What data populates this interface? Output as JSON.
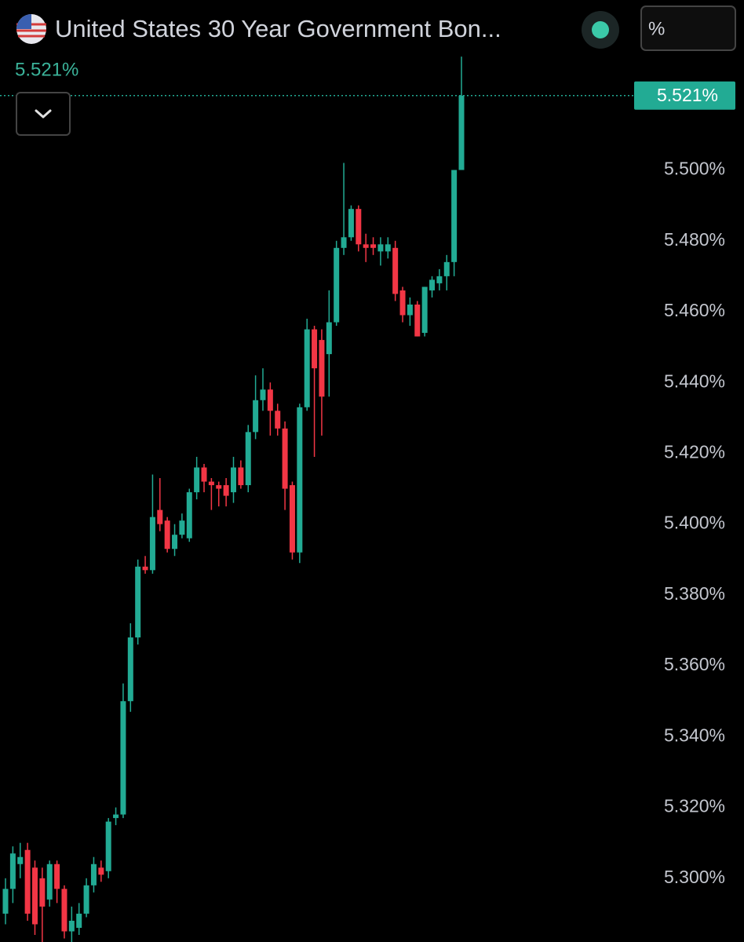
{
  "header": {
    "title": "United States 30 Year Government Bon...",
    "unit_button": "%"
  },
  "chart_data": {
    "type": "candlestick",
    "last_price": {
      "value": 5.521,
      "label": "5.521%"
    },
    "up_color": "#22ab94",
    "down_color": "#f23645",
    "ylim": [
      5.282,
      5.548
    ],
    "yticks": [
      {
        "value": 5.3,
        "label": "5.300%"
      },
      {
        "value": 5.32,
        "label": "5.320%"
      },
      {
        "value": 5.34,
        "label": "5.340%"
      },
      {
        "value": 5.36,
        "label": "5.360%"
      },
      {
        "value": 5.38,
        "label": "5.380%"
      },
      {
        "value": 5.4,
        "label": "5.400%"
      },
      {
        "value": 5.42,
        "label": "5.420%"
      },
      {
        "value": 5.44,
        "label": "5.440%"
      },
      {
        "value": 5.46,
        "label": "5.460%"
      },
      {
        "value": 5.48,
        "label": "5.480%"
      },
      {
        "value": 5.5,
        "label": "5.500%"
      }
    ],
    "open": [
      5.29,
      5.297,
      5.304,
      5.308,
      5.303,
      5.3,
      5.294,
      5.304,
      5.297,
      5.285,
      5.286,
      5.29,
      5.298,
      5.303,
      5.302,
      5.317,
      5.318,
      5.35,
      5.368,
      5.388,
      5.387,
      5.404,
      5.401,
      5.393,
      5.397,
      5.396,
      5.409,
      5.416,
      5.412,
      5.411,
      5.411,
      5.409,
      5.416,
      5.411,
      5.426,
      5.435,
      5.438,
      5.432,
      5.427,
      5.411,
      5.392,
      5.433,
      5.455,
      5.452,
      5.448,
      5.457,
      5.478,
      5.481,
      5.489,
      5.479,
      5.479,
      5.477,
      5.477,
      5.478,
      5.466,
      5.459,
      5.462,
      5.454,
      5.466,
      5.468,
      5.47,
      5.474,
      5.5
    ],
    "high": [
      5.3,
      5.309,
      5.31,
      5.31,
      5.305,
      5.303,
      5.305,
      5.305,
      5.298,
      5.292,
      5.293,
      5.3,
      5.306,
      5.305,
      5.317,
      5.32,
      5.355,
      5.372,
      5.39,
      5.391,
      5.414,
      5.413,
      5.402,
      5.4,
      5.403,
      5.41,
      5.419,
      5.417,
      5.413,
      5.412,
      5.413,
      5.419,
      5.418,
      5.428,
      5.442,
      5.444,
      5.44,
      5.434,
      5.429,
      5.412,
      5.434,
      5.458,
      5.456,
      5.455,
      5.466,
      5.48,
      5.502,
      5.49,
      5.49,
      5.482,
      5.481,
      5.481,
      5.481,
      5.48,
      5.467,
      5.464,
      5.463,
      5.467,
      5.47,
      5.472,
      5.476,
      5.5,
      5.532
    ],
    "low": [
      5.287,
      5.293,
      5.3,
      5.288,
      5.284,
      5.281,
      5.292,
      5.293,
      5.283,
      5.281,
      5.284,
      5.289,
      5.296,
      5.299,
      5.3,
      5.315,
      5.317,
      5.347,
      5.366,
      5.386,
      5.386,
      5.398,
      5.392,
      5.391,
      5.396,
      5.395,
      5.407,
      5.409,
      5.404,
      5.405,
      5.405,
      5.406,
      5.41,
      5.409,
      5.424,
      5.432,
      5.425,
      5.425,
      5.404,
      5.39,
      5.389,
      5.432,
      5.419,
      5.425,
      5.436,
      5.456,
      5.476,
      5.48,
      5.477,
      5.474,
      5.476,
      5.473,
      5.475,
      5.463,
      5.457,
      5.456,
      5.453,
      5.453,
      5.464,
      5.466,
      5.466,
      5.47,
      5.5
    ],
    "close": [
      5.297,
      5.307,
      5.306,
      5.29,
      5.287,
      5.292,
      5.304,
      5.297,
      5.285,
      5.288,
      5.29,
      5.298,
      5.304,
      5.301,
      5.316,
      5.318,
      5.35,
      5.368,
      5.388,
      5.387,
      5.402,
      5.4,
      5.393,
      5.397,
      5.401,
      5.409,
      5.416,
      5.412,
      5.411,
      5.41,
      5.408,
      5.416,
      5.411,
      5.426,
      5.435,
      5.438,
      5.432,
      5.427,
      5.41,
      5.392,
      5.433,
      5.455,
      5.444,
      5.436,
      5.457,
      5.478,
      5.481,
      5.489,
      5.479,
      5.478,
      5.478,
      5.479,
      5.479,
      5.465,
      5.459,
      5.462,
      5.453,
      5.467,
      5.469,
      5.47,
      5.474,
      5.5,
      5.521
    ]
  }
}
